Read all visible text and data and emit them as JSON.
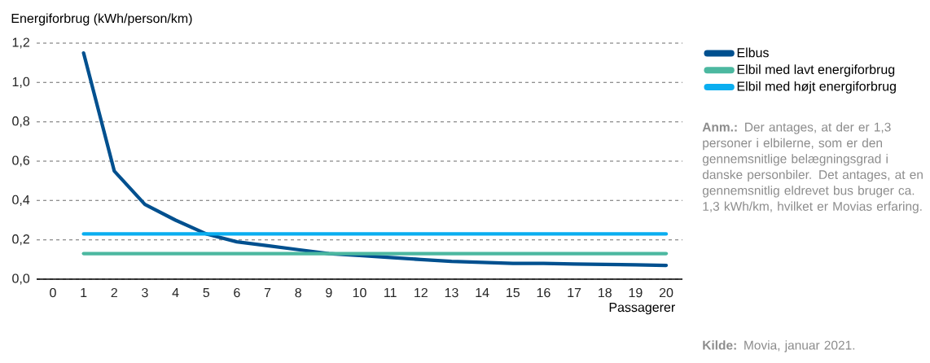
{
  "chart_data": {
    "type": "line",
    "ylabel": "Energiforbrug  (kWh/person/km)",
    "xlabel": "Passagerer",
    "categories": [
      "0",
      "1",
      "2",
      "3",
      "4",
      "5",
      "6",
      "7",
      "8",
      "9",
      "10",
      "11",
      "12",
      "13",
      "14",
      "15",
      "16",
      "17",
      "18",
      "19",
      "20"
    ],
    "series": [
      {
        "name": "Elbus",
        "color": "#00508f",
        "values": [
          null,
          1.15,
          0.55,
          0.38,
          0.3,
          0.23,
          0.19,
          0.17,
          0.15,
          0.13,
          0.12,
          0.11,
          0.1,
          0.09,
          0.085,
          0.08,
          0.08,
          0.077,
          0.075,
          0.073,
          0.07
        ]
      },
      {
        "name": "Elbil med lavt energiforbrug",
        "color": "#4cb8a0",
        "values": [
          null,
          0.13,
          0.13,
          0.13,
          0.13,
          0.13,
          0.13,
          0.13,
          0.13,
          0.13,
          0.13,
          0.13,
          0.13,
          0.13,
          0.13,
          0.13,
          0.13,
          0.13,
          0.13,
          0.13,
          0.13
        ]
      },
      {
        "name": "Elbil med højt energiforbrug",
        "color": "#0aaef0",
        "values": [
          null,
          0.23,
          0.23,
          0.23,
          0.23,
          0.23,
          0.23,
          0.23,
          0.23,
          0.23,
          0.23,
          0.23,
          0.23,
          0.23,
          0.23,
          0.23,
          0.23,
          0.23,
          0.23,
          0.23,
          0.23
        ]
      }
    ],
    "ylim": [
      0,
      1.2
    ],
    "yticks": [
      {
        "value": 0,
        "label": "0,0"
      },
      {
        "value": 0.2,
        "label": "0,2"
      },
      {
        "value": 0.4,
        "label": "0,4"
      },
      {
        "value": 0.6,
        "label": "0,6"
      },
      {
        "value": 0.8,
        "label": "0,8"
      },
      {
        "value": 1.0,
        "label": "1,0"
      },
      {
        "value": 1.2,
        "label": "1,2"
      }
    ],
    "grid": "y",
    "legend": "right",
    "marker": "none",
    "line_style": "solid",
    "annotations": [
      "**Anm.:** Der antages, at der er 1,3 personer i elbilerne, som er den gennemsnitlige belægningsgrad i danske personbiler. Det antages, at en gennemsnitlig eldrevet bus bruger ca. 1,3 kWh/km, hvilket er Movias erfaring.",
      "**Kilde:** Movia, januar 2021."
    ]
  }
}
